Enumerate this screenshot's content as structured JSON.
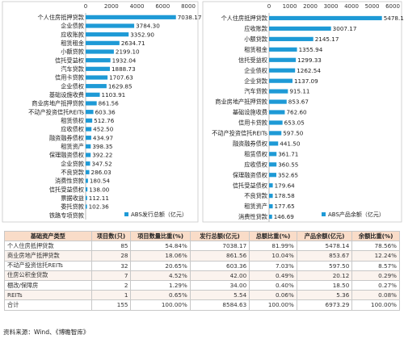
{
  "chart_data": [
    {
      "type": "bar",
      "orientation": "horizontal",
      "legend": "ABS发行总额（亿元）",
      "legend_position": "bottom-right",
      "color": "#1e9ad6",
      "xlim": [
        0,
        8000
      ],
      "ticks": [
        0,
        2000,
        4000,
        6000,
        8000
      ],
      "categories": [
        "个人住房抵押贷款",
        "企业债款",
        "应收账款",
        "租赁租金",
        "小额贷款",
        "信托受益权",
        "汽车贷款",
        "信用卡贷款",
        "企业债权",
        "基础设施收费",
        "商业房地产抵押贷款",
        "不动产投资信托REITs",
        "租赁债权",
        "应收债权",
        "融资融券债权",
        "租赁资产",
        "保理融资债权",
        "企业贷款",
        "不良贷款",
        "消费性贷款",
        "信托受益债权",
        "票据收益",
        "委托贷款",
        "铁路专项贷款"
      ],
      "values": [
        7038.17,
        3784.3,
        3352.9,
        2634.71,
        2199.1,
        1932.04,
        1888.73,
        1707.63,
        1629.85,
        1103.91,
        861.56,
        603.36,
        512.76,
        452.5,
        434.97,
        398.35,
        392.22,
        347.52,
        286.03,
        180.54,
        138.0,
        112.11,
        102.36,
        null
      ],
      "value_labels": [
        "7038.17",
        "3784.30",
        "3352.90",
        "2634.71",
        "2199.10",
        "1932.04",
        "1888.73",
        "1707.63",
        "1629.85",
        "1103.91",
        "861.56",
        "603.36",
        "512.76",
        "452.50",
        "434.97",
        "398.35",
        "392.22",
        "347.52",
        "286.03",
        "180.54",
        "138.00",
        "112.11",
        "102.36",
        ""
      ]
    },
    {
      "type": "bar",
      "orientation": "horizontal",
      "legend": "ABS产品余额（亿元）",
      "legend_position": "bottom-right",
      "color": "#1e9ad6",
      "xlim": [
        0,
        6000
      ],
      "ticks": [
        0,
        1000,
        2000,
        3000,
        4000,
        5000,
        6000
      ],
      "categories": [
        "个人住房抵押贷款",
        "应收账款",
        "小额贷款",
        "租赁租金",
        "信托受益权",
        "企业债权",
        "企业贷款",
        "汽车贷款",
        "商业房地产抵押贷款",
        "基础设施收费",
        "信用卡贷款",
        "不动产投资信托REITs",
        "融资融券债权",
        "租赁债权",
        "应收债权",
        "保理融资债权",
        "信托受益债权",
        "不良贷款",
        "租赁资产",
        "消费性贷款"
      ],
      "values": [
        5478.14,
        3007.17,
        2145.17,
        1355.94,
        1299.33,
        1262.54,
        1137.09,
        915.11,
        853.67,
        762.6,
        653.05,
        597.5,
        441.5,
        361.71,
        360.55,
        352.65,
        179.64,
        178.58,
        177.65,
        146.69
      ],
      "value_labels": [
        "5478.14",
        "3007.17",
        "2145.17",
        "1355.94",
        "1299.33",
        "1262.54",
        "1137.09",
        "915.11",
        "853.67",
        "762.60",
        "653.05",
        "597.50",
        "441.50",
        "361.71",
        "360.55",
        "352.65",
        "179.64",
        "178.58",
        "177.65",
        "146.69"
      ]
    }
  ],
  "table": {
    "headers": [
      "基础资产类型",
      "项目数(只)",
      "项目数量比重(%)",
      "发行总额(亿元)",
      "总额比重(%)",
      "产品余额(亿元)",
      "余额比重(%)"
    ],
    "rows": [
      [
        "个人住房抵押贷款",
        "85",
        "54.84%",
        "7038.17",
        "81.99%",
        "5478.14",
        "78.56%"
      ],
      [
        "商业房地产抵押贷款",
        "28",
        "18.06%",
        "861.56",
        "10.04%",
        "853.67",
        "12.24%"
      ],
      [
        "不动产投资信托REITs",
        "32",
        "20.65%",
        "603.36",
        "7.03%",
        "597.50",
        "8.57%"
      ],
      [
        "住房公积金贷款",
        "7",
        "4.52%",
        "42.00",
        "0.49%",
        "20.12",
        "0.29%"
      ],
      [
        "棚改/保障房",
        "2",
        "1.29%",
        "34.00",
        "0.40%",
        "18.50",
        "0.27%"
      ],
      [
        "REITs",
        "1",
        "0.65%",
        "5.54",
        "0.06%",
        "5.36",
        "0.08%"
      ],
      [
        "合计",
        "155",
        "100.00%",
        "8584.63",
        "100.00%",
        "6973.29",
        "100.00%"
      ]
    ]
  },
  "source": "资料来源：Wind、《博瞻智库》"
}
